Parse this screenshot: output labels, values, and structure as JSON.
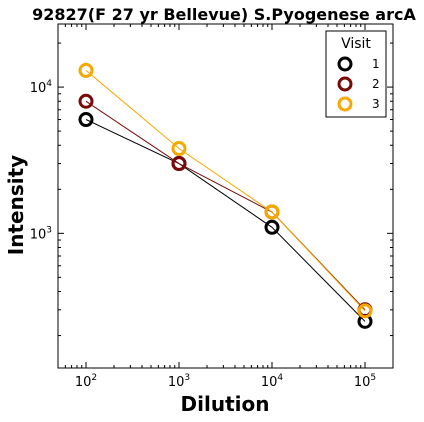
{
  "chart_data": {
    "type": "line",
    "title": "92827(F 27 yr Bellevue) S.Pyogenese arcA",
    "xlabel": "Dilution",
    "ylabel": "Intensity",
    "x_scale": "log",
    "y_scale": "log",
    "xlim": [
      50,
      200000
    ],
    "ylim": [
      120,
      27000
    ],
    "x_ticks": [
      {
        "value": 100,
        "base": "10",
        "exp": "2"
      },
      {
        "value": 1000,
        "base": "10",
        "exp": "3"
      },
      {
        "value": 10000,
        "base": "10",
        "exp": "4"
      },
      {
        "value": 100000,
        "base": "10",
        "exp": "5"
      }
    ],
    "y_ticks": [
      {
        "value": 1000,
        "base": "10",
        "exp": "3"
      },
      {
        "value": 10000,
        "base": "10",
        "exp": "4"
      }
    ],
    "x": [
      100,
      1000,
      10000,
      100000
    ],
    "series": [
      {
        "name": "1",
        "color": "#000000",
        "values": [
          6000,
          3000,
          1100,
          250
        ]
      },
      {
        "name": "2",
        "color": "#7a0a0a",
        "values": [
          8000,
          3000,
          1400,
          300
        ]
      },
      {
        "name": "3",
        "color": "#f5a800",
        "values": [
          13000,
          3800,
          1400,
          295
        ]
      }
    ],
    "legend": {
      "title": "Visit",
      "placement": "top-right"
    },
    "grid": false
  }
}
